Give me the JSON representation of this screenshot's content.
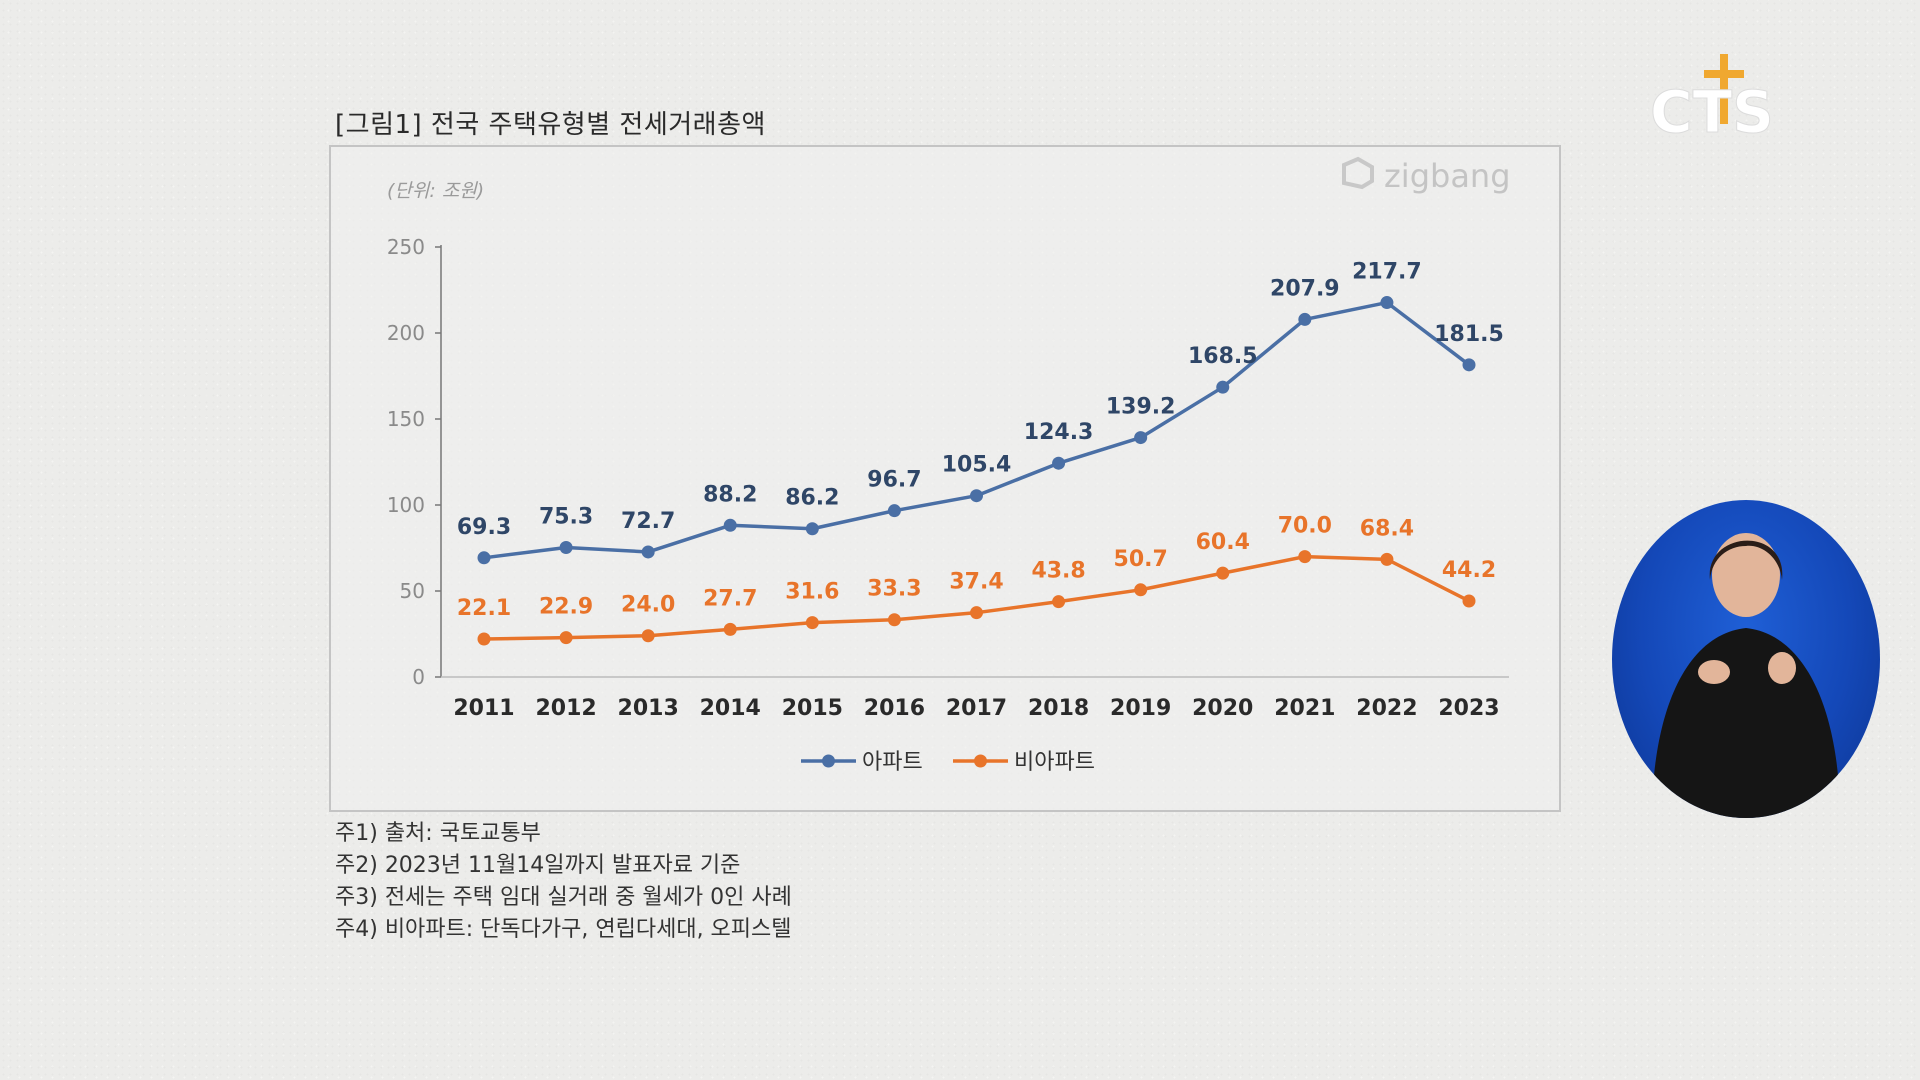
{
  "figure_title": "[그림1] 전국 주택유형별 전세거래총액",
  "watermark": "zigbang",
  "channel_logo": "CTS",
  "notes": [
    "주1) 출처: 국토교통부",
    "주2) 2023년 11월14일까지 발표자료 기준",
    "주3) 전세는 주택 임대 실거래 중 월세가 0인 사례",
    "주4) 비아파트: 단독다가구, 연립다세대, 오피스텔"
  ],
  "colors": {
    "apartment": "#4a6fa5",
    "non_apartment": "#e8742a",
    "apartment_label": "#2f4667",
    "non_apartment_label": "#e8742a"
  },
  "chart_data": {
    "type": "line",
    "title": "",
    "unit_label": "(단위: 조원)",
    "x": [
      "2011",
      "2012",
      "2013",
      "2014",
      "2015",
      "2016",
      "2017",
      "2018",
      "2019",
      "2020",
      "2021",
      "2022",
      "2023"
    ],
    "yticks": [
      "0",
      "50",
      "100",
      "150",
      "200",
      "250"
    ],
    "ylim": [
      0,
      250
    ],
    "grid": false,
    "legend_position": "bottom-center",
    "series": [
      {
        "name": "아파트",
        "values": [
          69.3,
          75.3,
          72.7,
          88.2,
          86.2,
          96.7,
          105.4,
          124.3,
          139.2,
          168.5,
          207.9,
          217.7,
          181.5
        ],
        "labels": [
          "69.3",
          "75.3",
          "72.7",
          "88.2",
          "86.2",
          "96.7",
          "105.4",
          "124.3",
          "139.2",
          "168.5",
          "207.9",
          "217.7",
          "181.5"
        ]
      },
      {
        "name": "비아파트",
        "values": [
          22.1,
          22.9,
          24.0,
          27.7,
          31.6,
          33.3,
          37.4,
          43.8,
          50.7,
          60.4,
          70.0,
          68.4,
          44.2
        ],
        "labels": [
          "22.1",
          "22.9",
          "24.0",
          "27.7",
          "31.6",
          "33.3",
          "37.4",
          "43.8",
          "50.7",
          "60.4",
          "70.0",
          "68.4",
          "44.2"
        ]
      }
    ]
  }
}
